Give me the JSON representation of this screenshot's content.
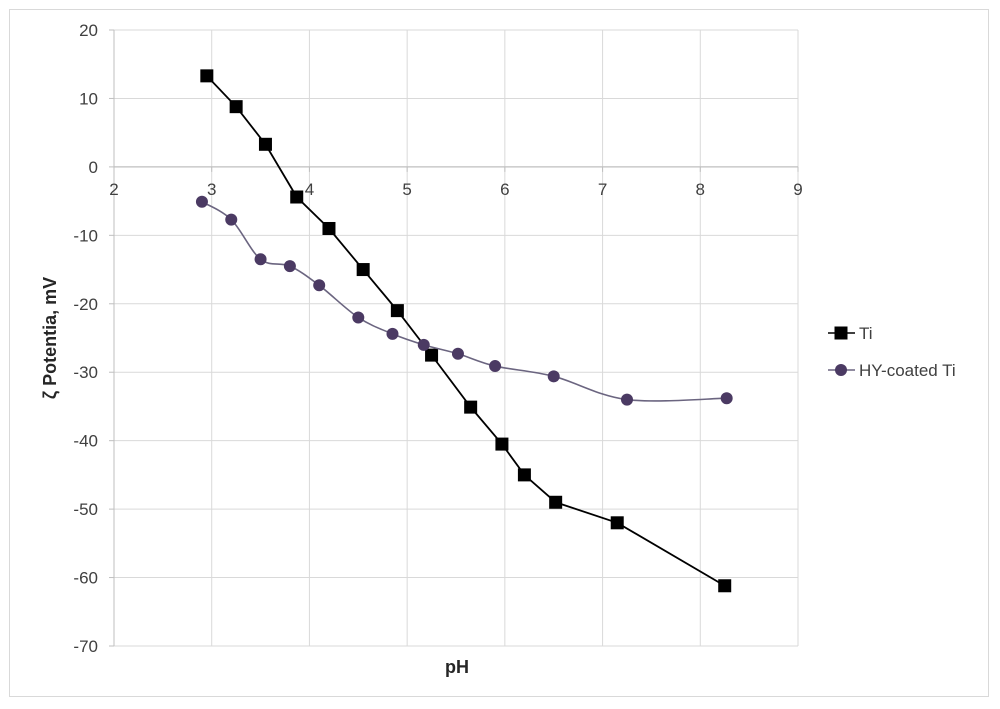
{
  "chart_data": {
    "type": "line",
    "xlabel": "pH",
    "ylabel": "ζ Potentia, mV",
    "xlim": [
      2,
      9
    ],
    "ylim": [
      -70,
      20
    ],
    "x_ticks": [
      "2",
      "3",
      "4",
      "5",
      "6",
      "7",
      "8",
      "9"
    ],
    "y_ticks": [
      "20",
      "10",
      "0",
      "-10",
      "-20",
      "-30",
      "-40",
      "-50",
      "-60",
      "-70"
    ],
    "grid": true,
    "legend_position": "right",
    "series": [
      {
        "name": "Ti",
        "marker": "square",
        "color": "#000000",
        "smooth": false,
        "x": [
          2.95,
          3.25,
          3.55,
          3.87,
          4.2,
          4.55,
          4.9,
          5.25,
          5.65,
          5.97,
          6.2,
          6.52,
          7.15,
          8.25
        ],
        "y": [
          13.3,
          8.8,
          3.3,
          -4.4,
          -9.0,
          -15.0,
          -21.0,
          -27.5,
          -35.1,
          -40.5,
          -45.0,
          -49.0,
          -52.0,
          -61.2
        ]
      },
      {
        "name": "HY-coated Ti",
        "marker": "circle",
        "color": "#4b3a63",
        "smooth": true,
        "x": [
          2.9,
          3.2,
          3.5,
          3.8,
          4.1,
          4.5,
          4.85,
          5.17,
          5.52,
          5.9,
          6.5,
          7.25,
          8.27
        ],
        "y": [
          -5.1,
          -7.7,
          -13.5,
          -14.5,
          -17.3,
          -22.0,
          -24.4,
          -26.0,
          -27.3,
          -29.1,
          -30.6,
          -34.0,
          -33.8
        ]
      }
    ]
  }
}
